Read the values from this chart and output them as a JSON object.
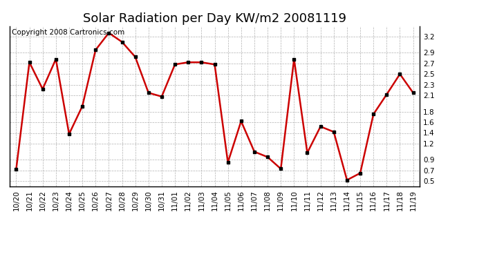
{
  "title": "Solar Radiation per Day KW/m2 20081119",
  "copyright": "Copyright 2008 Cartronics.com",
  "dates": [
    "10/20",
    "10/21",
    "10/22",
    "10/23",
    "10/24",
    "10/25",
    "10/26",
    "10/27",
    "10/28",
    "10/29",
    "10/30",
    "10/31",
    "11/01",
    "11/02",
    "11/03",
    "11/04",
    "11/05",
    "11/06",
    "11/07",
    "11/08",
    "11/09",
    "11/10",
    "11/11",
    "11/12",
    "11/13",
    "11/14",
    "11/15",
    "11/16",
    "11/17",
    "11/18",
    "11/19"
  ],
  "values": [
    0.72,
    2.72,
    2.22,
    2.78,
    1.38,
    1.9,
    2.95,
    3.27,
    3.1,
    2.82,
    2.15,
    2.08,
    2.68,
    2.72,
    2.72,
    2.68,
    0.85,
    1.62,
    1.05,
    0.95,
    0.73,
    2.78,
    1.03,
    1.52,
    1.42,
    0.52,
    0.65,
    1.75,
    2.12,
    2.5,
    2.15
  ],
  "line_color": "#cc0000",
  "marker_color": "#000000",
  "bg_color": "#ffffff",
  "grid_color": "#b0b0b0",
  "ylim": [
    0.4,
    3.4
  ],
  "yticks": [
    0.5,
    0.7,
    0.9,
    1.2,
    1.4,
    1.6,
    1.8,
    2.1,
    2.3,
    2.5,
    2.7,
    2.9,
    3.2
  ],
  "title_fontsize": 13,
  "copyright_fontsize": 7.5,
  "tick_fontsize": 7.5
}
